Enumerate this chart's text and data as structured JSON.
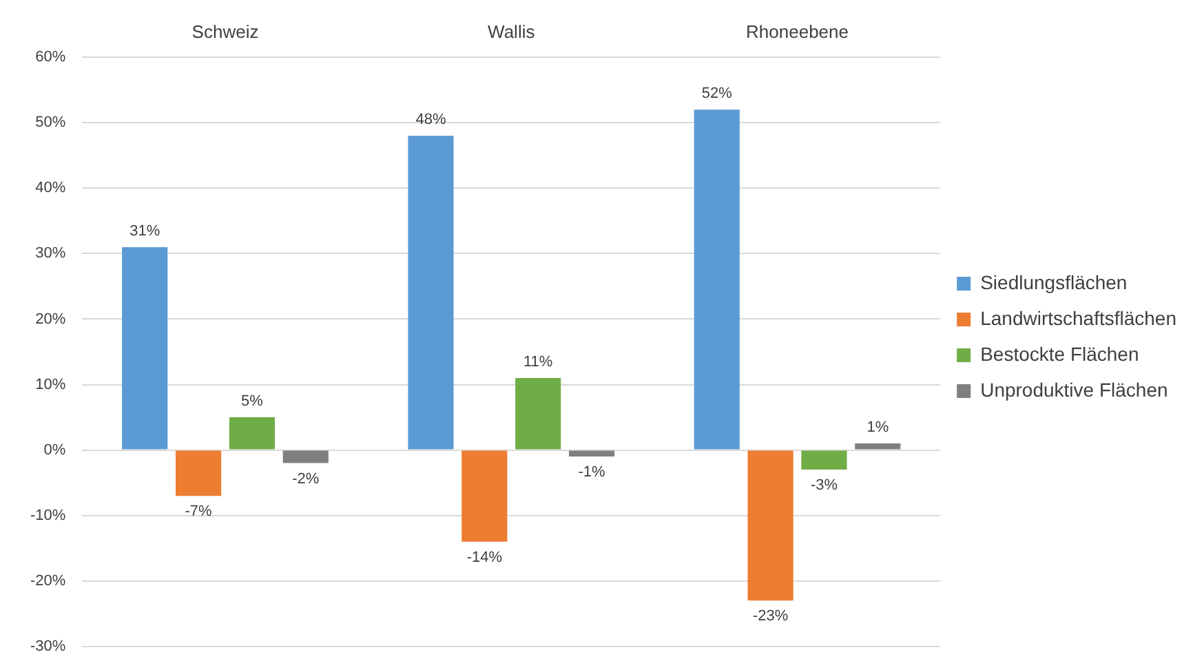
{
  "chart_data": {
    "type": "bar",
    "categories": [
      "Schweiz",
      "Wallis",
      "Rhoneebene"
    ],
    "series": [
      {
        "name": "Siedlungsflächen",
        "color": "#5b9bd5",
        "values": [
          31,
          48,
          52
        ],
        "value_labels": [
          "31%",
          "48%",
          "52%"
        ]
      },
      {
        "name": "Landwirtschaftsflächen",
        "color": "#ed7d31",
        "values": [
          -7,
          -14,
          -23
        ],
        "value_labels": [
          "-7%",
          "-14%",
          "-23%"
        ]
      },
      {
        "name": "Bestockte Flächen",
        "color": "#70ad47",
        "values": [
          5,
          11,
          -3
        ],
        "value_labels": [
          "5%",
          "11%",
          "-3%"
        ]
      },
      {
        "name": "Unproduktive Flächen",
        "color": "#7f7f7f",
        "values": [
          -2,
          -1,
          1
        ],
        "value_labels": [
          "-2%",
          "-1%",
          "1%"
        ]
      }
    ],
    "ylim": [
      -30,
      60
    ],
    "yticks": [
      {
        "value": -30,
        "label": "-30%"
      },
      {
        "value": -20,
        "label": "-20%"
      },
      {
        "value": -10,
        "label": "-10%"
      },
      {
        "value": 0,
        "label": "0%"
      },
      {
        "value": 10,
        "label": "10%"
      },
      {
        "value": 20,
        "label": "20%"
      },
      {
        "value": 30,
        "label": "30%"
      },
      {
        "value": 40,
        "label": "40%"
      },
      {
        "value": 50,
        "label": "50%"
      },
      {
        "value": 60,
        "label": "60%"
      }
    ],
    "grid": "y",
    "legend": "right"
  }
}
